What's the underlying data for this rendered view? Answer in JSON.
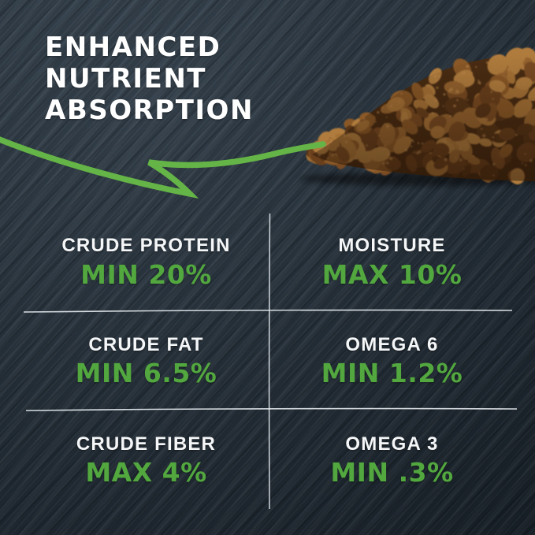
{
  "headline": {
    "lines": [
      "ENHANCED",
      "NUTRIENT",
      "ABSORPTION"
    ]
  },
  "nutrition_table": {
    "cells": [
      {
        "label": "CRUDE PROTEIN",
        "value": "MIN 20%"
      },
      {
        "label": "MOISTURE",
        "value": "MAX 10%"
      },
      {
        "label": "CRUDE FAT",
        "value": "MIN 6.5%"
      },
      {
        "label": "OMEGA 6",
        "value": "MIN 1.2%"
      },
      {
        "label": "CRUDE FIBER",
        "value": "MAX 4%"
      },
      {
        "label": "OMEGA 3",
        "value": "MIN .3%"
      }
    ]
  },
  "colors": {
    "accent_green": "#52a73f",
    "swoosh_green": "#65b447",
    "background_slate": "#26323d",
    "text_white": "#ffffff",
    "divider_white": "#e9eef2"
  },
  "decor": {
    "swoosh": "hand-drawn-swoosh-arrow",
    "kibble": "kibble-pile-photo",
    "kibble_palette": [
      "#593415",
      "#6b401c",
      "#7a4b21",
      "#8a5827",
      "#96642e",
      "#a67136",
      "#b07c3e"
    ],
    "kibble_speckle": "#c28c4e"
  }
}
